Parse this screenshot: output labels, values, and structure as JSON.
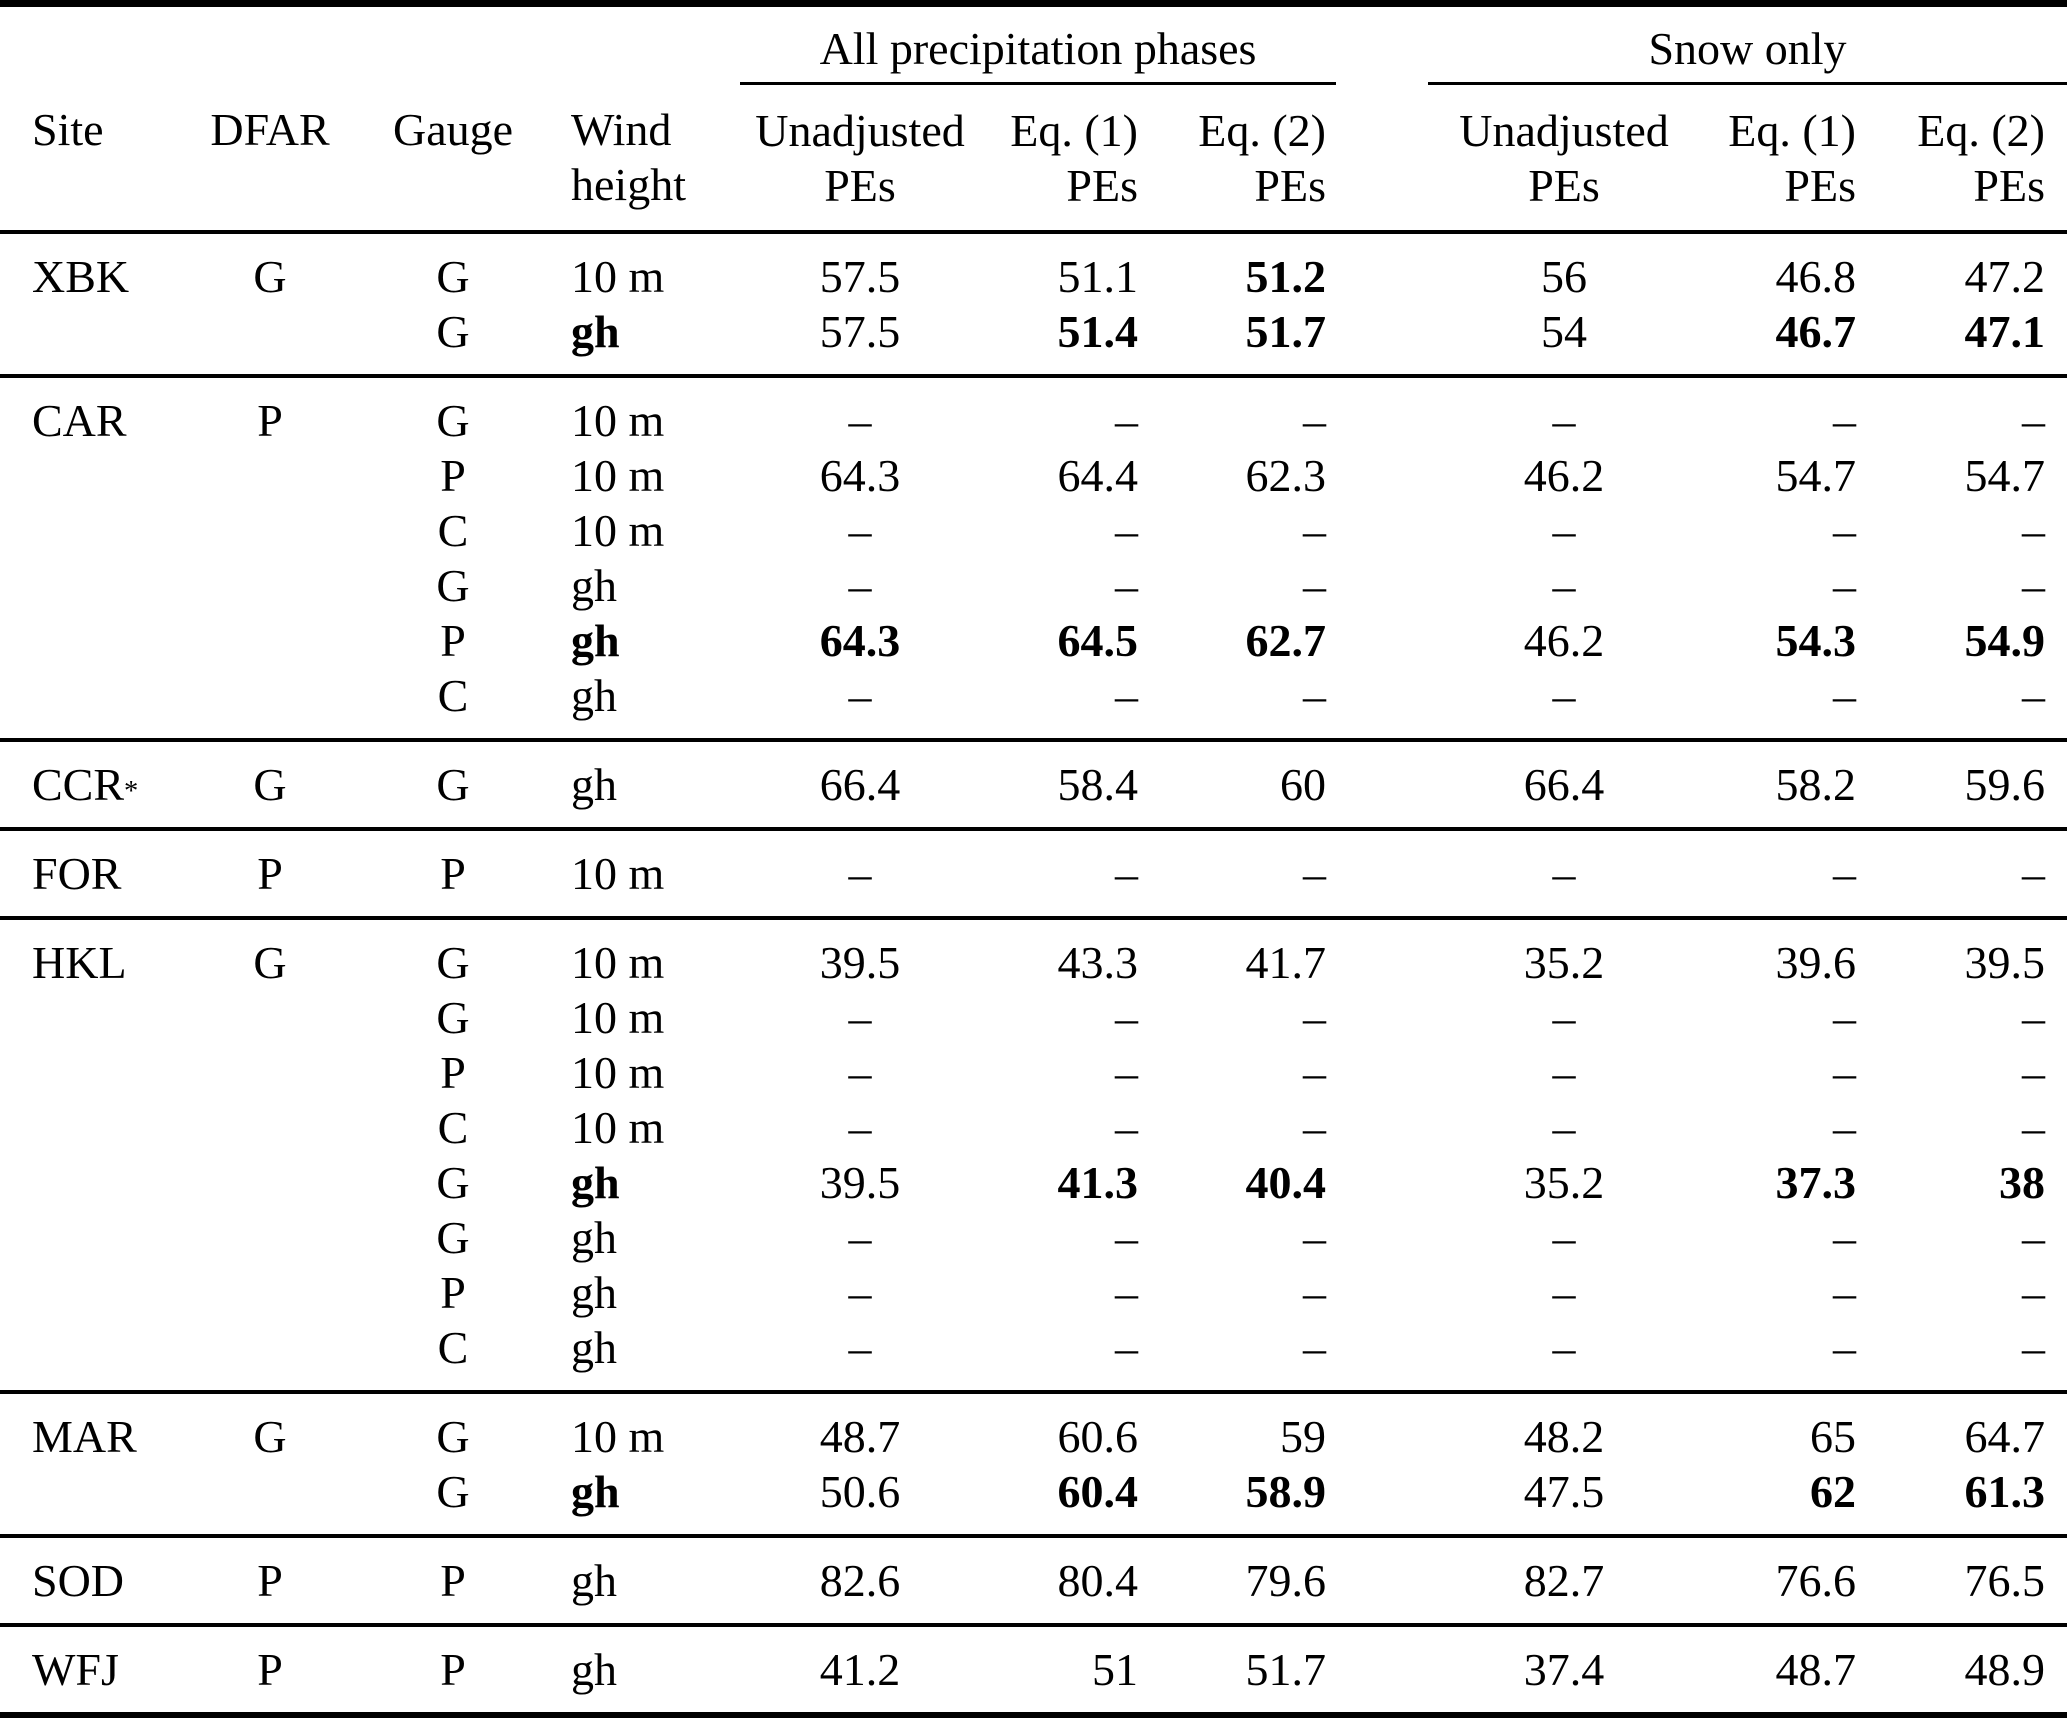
{
  "header": {
    "site": "Site",
    "dfar": "DFAR",
    "gauge": "Gauge",
    "wind_line1": "Wind",
    "wind_line2": "height",
    "group_all": "All precipitation phases",
    "group_snow": "Snow only",
    "unadjusted": "Unadjusted",
    "eq1": "Eq. (1)",
    "eq2": "Eq. (2)",
    "pes": "PEs"
  },
  "dash": "–",
  "blocks": [
    {
      "site": "XBK",
      "site_sup": "",
      "dfar": "G",
      "rows": [
        {
          "gauge": "G",
          "wind": "10 m",
          "wind_bold": false,
          "vals": [
            "57.5",
            "51.1",
            "51.2",
            "56",
            "46.8",
            "47.2"
          ],
          "bold": [
            false,
            false,
            true,
            false,
            false,
            false
          ]
        },
        {
          "gauge": "G",
          "wind": "gh",
          "wind_bold": true,
          "vals": [
            "57.5",
            "51.4",
            "51.7",
            "54",
            "46.7",
            "47.1"
          ],
          "bold": [
            false,
            true,
            true,
            false,
            true,
            true
          ]
        }
      ]
    },
    {
      "site": "CAR",
      "site_sup": "",
      "dfar": "P",
      "rows": [
        {
          "gauge": "G",
          "wind": "10 m",
          "wind_bold": false,
          "vals": [
            "–",
            "–",
            "–",
            "–",
            "–",
            "–"
          ],
          "bold": [
            false,
            false,
            false,
            false,
            false,
            false
          ]
        },
        {
          "gauge": "P",
          "wind": "10 m",
          "wind_bold": false,
          "vals": [
            "64.3",
            "64.4",
            "62.3",
            "46.2",
            "54.7",
            "54.7"
          ],
          "bold": [
            false,
            false,
            false,
            false,
            false,
            false
          ]
        },
        {
          "gauge": "C",
          "wind": "10 m",
          "wind_bold": false,
          "vals": [
            "–",
            "–",
            "–",
            "–",
            "–",
            "–"
          ],
          "bold": [
            false,
            false,
            false,
            false,
            false,
            false
          ]
        },
        {
          "gauge": "G",
          "wind": "gh",
          "wind_bold": false,
          "vals": [
            "–",
            "–",
            "–",
            "–",
            "–",
            "–"
          ],
          "bold": [
            false,
            false,
            false,
            false,
            false,
            false
          ]
        },
        {
          "gauge": "P",
          "wind": "gh",
          "wind_bold": true,
          "vals": [
            "64.3",
            "64.5",
            "62.7",
            "46.2",
            "54.3",
            "54.9"
          ],
          "bold": [
            true,
            true,
            true,
            false,
            true,
            true
          ]
        },
        {
          "gauge": "C",
          "wind": "gh",
          "wind_bold": false,
          "vals": [
            "–",
            "–",
            "–",
            "–",
            "–",
            "–"
          ],
          "bold": [
            false,
            false,
            false,
            false,
            false,
            false
          ]
        }
      ]
    },
    {
      "site": "CCR",
      "site_sup": "*",
      "dfar": "G",
      "rows": [
        {
          "gauge": "G",
          "wind": "gh",
          "wind_bold": false,
          "vals": [
            "66.4",
            "58.4",
            "60",
            "66.4",
            "58.2",
            "59.6"
          ],
          "bold": [
            false,
            false,
            false,
            false,
            false,
            false
          ]
        }
      ]
    },
    {
      "site": "FOR",
      "site_sup": "",
      "dfar": "P",
      "rows": [
        {
          "gauge": "P",
          "wind": "10 m",
          "wind_bold": false,
          "vals": [
            "–",
            "–",
            "–",
            "–",
            "–",
            "–"
          ],
          "bold": [
            false,
            false,
            false,
            false,
            false,
            false
          ]
        }
      ]
    },
    {
      "site": "HKL",
      "site_sup": "",
      "dfar": "G",
      "rows": [
        {
          "gauge": "G",
          "wind": "10 m",
          "wind_bold": false,
          "vals": [
            "39.5",
            "43.3",
            "41.7",
            "35.2",
            "39.6",
            "39.5"
          ],
          "bold": [
            false,
            false,
            false,
            false,
            false,
            false
          ]
        },
        {
          "gauge": "G",
          "wind": "10 m",
          "wind_bold": false,
          "vals": [
            "–",
            "–",
            "–",
            "–",
            "–",
            "–"
          ],
          "bold": [
            false,
            false,
            false,
            false,
            false,
            false
          ]
        },
        {
          "gauge": "P",
          "wind": "10 m",
          "wind_bold": false,
          "vals": [
            "–",
            "–",
            "–",
            "–",
            "–",
            "–"
          ],
          "bold": [
            false,
            false,
            false,
            false,
            false,
            false
          ]
        },
        {
          "gauge": "C",
          "wind": "10 m",
          "wind_bold": false,
          "vals": [
            "–",
            "–",
            "–",
            "–",
            "–",
            "–"
          ],
          "bold": [
            false,
            false,
            false,
            false,
            false,
            false
          ]
        },
        {
          "gauge": "G",
          "wind": "gh",
          "wind_bold": true,
          "vals": [
            "39.5",
            "41.3",
            "40.4",
            "35.2",
            "37.3",
            "38"
          ],
          "bold": [
            false,
            true,
            true,
            false,
            true,
            true
          ]
        },
        {
          "gauge": "G",
          "wind": "gh",
          "wind_bold": false,
          "vals": [
            "–",
            "–",
            "–",
            "–",
            "–",
            "–"
          ],
          "bold": [
            false,
            false,
            false,
            false,
            false,
            false
          ]
        },
        {
          "gauge": "P",
          "wind": "gh",
          "wind_bold": false,
          "vals": [
            "–",
            "–",
            "–",
            "–",
            "–",
            "–"
          ],
          "bold": [
            false,
            false,
            false,
            false,
            false,
            false
          ]
        },
        {
          "gauge": "C",
          "wind": "gh",
          "wind_bold": false,
          "vals": [
            "–",
            "–",
            "–",
            "–",
            "–",
            "–"
          ],
          "bold": [
            false,
            false,
            false,
            false,
            false,
            false
          ]
        }
      ]
    },
    {
      "site": "MAR",
      "site_sup": "",
      "dfar": "G",
      "rows": [
        {
          "gauge": "G",
          "wind": "10 m",
          "wind_bold": false,
          "vals": [
            "48.7",
            "60.6",
            "59",
            "48.2",
            "65",
            "64.7"
          ],
          "bold": [
            false,
            false,
            false,
            false,
            false,
            false
          ]
        },
        {
          "gauge": "G",
          "wind": "gh",
          "wind_bold": true,
          "vals": [
            "50.6",
            "60.4",
            "58.9",
            "47.5",
            "62",
            "61.3"
          ],
          "bold": [
            false,
            true,
            true,
            false,
            true,
            true
          ]
        }
      ]
    },
    {
      "site": "SOD",
      "site_sup": "",
      "dfar": "P",
      "rows": [
        {
          "gauge": "P",
          "wind": "gh",
          "wind_bold": false,
          "vals": [
            "82.6",
            "80.4",
            "79.6",
            "82.7",
            "76.6",
            "76.5"
          ],
          "bold": [
            false,
            false,
            false,
            false,
            false,
            false
          ]
        }
      ]
    },
    {
      "site": "WFJ",
      "site_sup": "",
      "dfar": "P",
      "rows": [
        {
          "gauge": "P",
          "wind": "gh",
          "wind_bold": false,
          "vals": [
            "41.2",
            "51",
            "51.7",
            "37.4",
            "48.7",
            "48.9"
          ],
          "bold": [
            false,
            false,
            false,
            false,
            false,
            false
          ]
        }
      ]
    }
  ]
}
